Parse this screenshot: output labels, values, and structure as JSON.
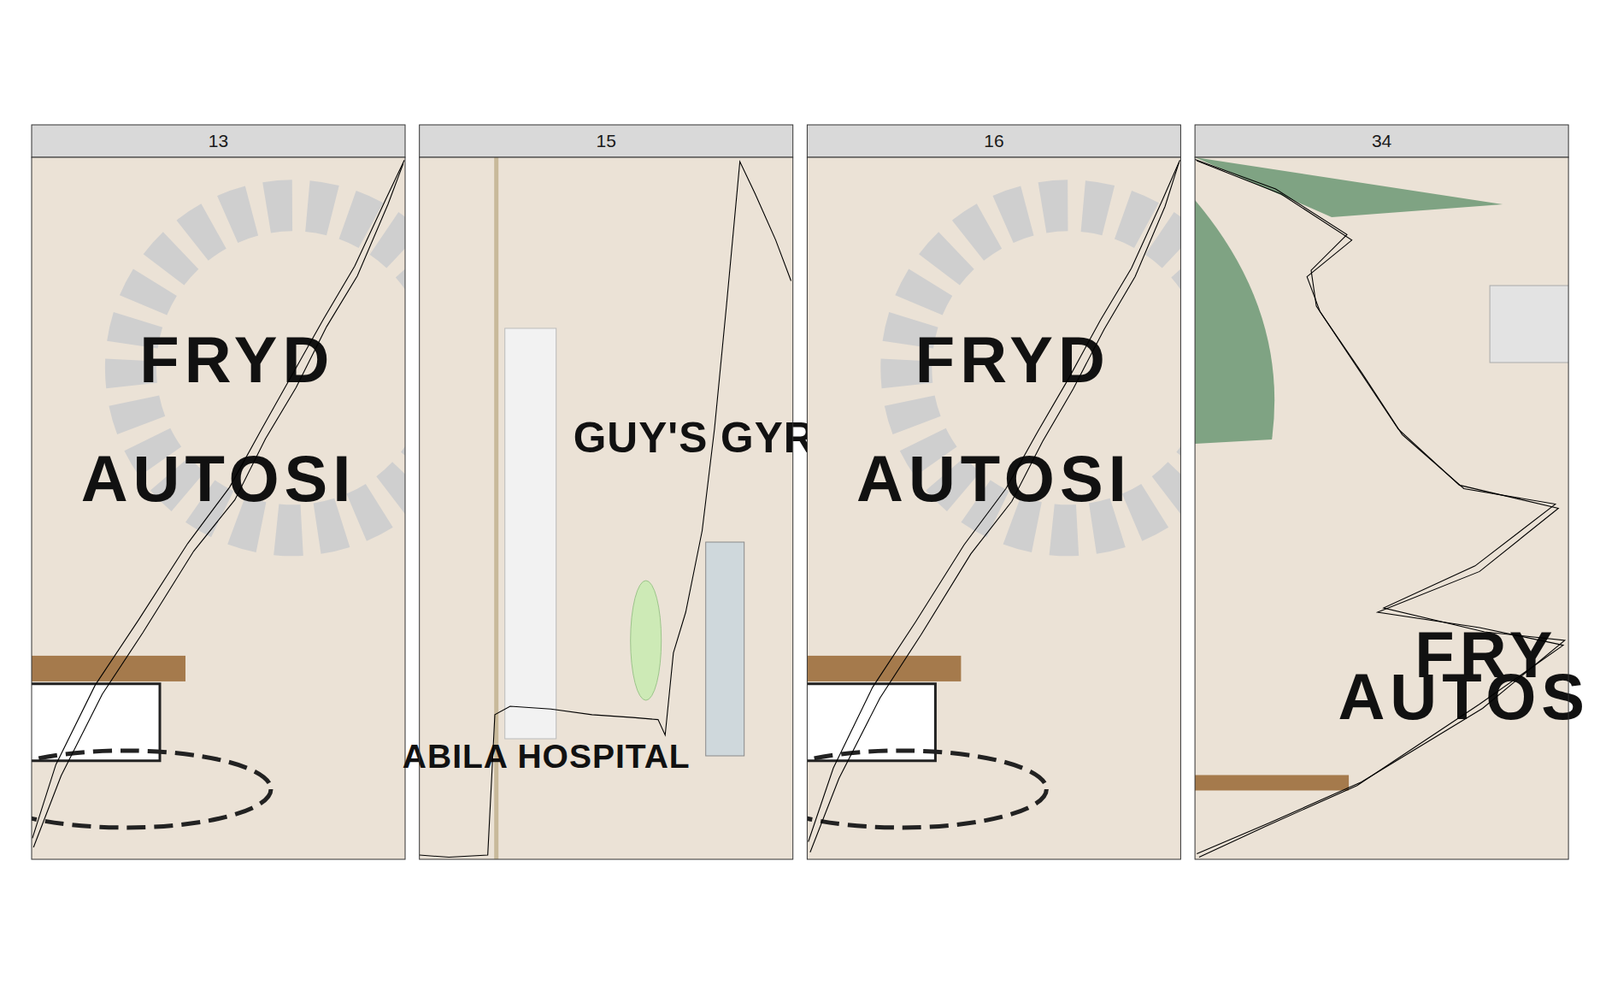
{
  "chart_data": [
    {
      "type": "line",
      "title": "13",
      "xlim": [
        0,
        100
      ],
      "ylim": [
        0,
        100
      ],
      "tick_labels": false,
      "grid": false,
      "annotations": [
        {
          "text": "FRYD",
          "x": 55,
          "y": 68
        },
        {
          "text": "AUTOSI",
          "x": 50,
          "y": 51
        }
      ],
      "series": [
        {
          "color": "#000000",
          "x": [
            0.5,
            7.9,
            18.9,
            29.8,
            43.4,
            54.4,
            62.6,
            70.8,
            79.0,
            87.2,
            95.4,
            99.5
          ],
          "values": [
            1.7,
            11.9,
            23.5,
            32.3,
            43.9,
            51.2,
            59.9,
            67.2,
            75.9,
            83.1,
            93.3,
            99.1
          ]
        },
        {
          "color": "#000000",
          "x": [
            0.2,
            6.5,
            17.0,
            28.5,
            41.8,
            53.0,
            61.5,
            69.5,
            78.2,
            86.5,
            94.8,
            99.8
          ],
          "values": [
            3.0,
            13.5,
            24.8,
            34.0,
            45.0,
            53.0,
            61.2,
            68.8,
            77.0,
            84.5,
            94.0,
            99.6
          ]
        }
      ]
    },
    {
      "type": "line",
      "title": "15",
      "xlim": [
        0,
        100
      ],
      "ylim": [
        0,
        100
      ],
      "tick_labels": false,
      "grid": false,
      "annotations": [
        {
          "text": "GUY'S GYROS",
          "x": 82,
          "y": 58
        },
        {
          "text": "ABILA HOSPITAL",
          "x": 34,
          "y": 13
        }
      ],
      "series": [
        {
          "color": "#000000",
          "x": [
            0,
            7.9,
            18.3,
            20.2,
            24.3,
            35.2,
            46.2,
            57.1,
            63.9,
            65.8,
            68.0,
            71.3,
            75.7,
            79.0,
            82.2,
            85.8,
            89.9,
            95.4,
            99.5
          ],
          "values": [
            0.6,
            0.3,
            0.6,
            20.6,
            21.8,
            21.4,
            20.6,
            20.2,
            19.9,
            17.7,
            29.4,
            35.2,
            46.8,
            61.3,
            78.8,
            99.4,
            94.8,
            88.2,
            82.4
          ]
        }
      ]
    },
    {
      "type": "line",
      "title": "16",
      "xlim": [
        0,
        100
      ],
      "ylim": [
        0,
        100
      ],
      "tick_labels": false,
      "grid": false,
      "annotations": [
        {
          "text": "FRYD",
          "x": 55,
          "y": 68
        },
        {
          "text": "AUTOSI",
          "x": 50,
          "y": 51
        }
      ],
      "series": [
        {
          "color": "#000000",
          "x": [
            0.8,
            8.5,
            19.5,
            30.5,
            43.8,
            54.8,
            63.0,
            71.2,
            79.5,
            87.8,
            95.8,
            99.5
          ],
          "values": [
            1.0,
            11.5,
            23.0,
            32.0,
            43.5,
            51.0,
            59.5,
            67.0,
            75.5,
            83.0,
            93.0,
            99.2
          ]
        },
        {
          "color": "#000000",
          "x": [
            0.3,
            7.0,
            17.5,
            29.0,
            42.0,
            53.2,
            61.8,
            70.0,
            78.5,
            86.8,
            95.0,
            99.8
          ],
          "values": [
            2.5,
            13.0,
            24.5,
            33.8,
            44.8,
            52.8,
            61.0,
            68.5,
            76.8,
            84.2,
            93.8,
            99.6
          ]
        }
      ]
    },
    {
      "type": "line",
      "title": "34",
      "xlim": [
        0,
        100
      ],
      "ylim": [
        0,
        100
      ],
      "tick_labels": false,
      "grid": false,
      "annotations": [
        {
          "text": "FRY",
          "x": 78,
          "y": 26
        },
        {
          "text": "AUTOS",
          "x": 72,
          "y": 20
        }
      ],
      "series": [
        {
          "color": "#000000",
          "x": [
            0,
            21.6,
            40.7,
            31.1,
            32.5,
            43.4,
            54.4,
            70.8,
            97.3,
            76.2,
            48.9,
            76.2,
            98.6,
            76.2,
            43.4,
            18.9,
            1.1
          ],
          "values": [
            99.7,
            95.5,
            89.0,
            83.9,
            78.8,
            70.1,
            61.3,
            53.3,
            50.0,
            41.0,
            35.2,
            33.0,
            30.5,
            22.1,
            10.5,
            4.7,
            0.3
          ]
        },
        {
          "color": "#000000",
          "x": [
            0.5,
            23.0,
            42.0,
            30.0,
            33.5,
            44.8,
            55.5,
            72.0,
            96.5,
            75.0,
            50.5,
            77.5,
            99.0,
            77.0,
            44.5,
            20.0,
            0.5
          ],
          "values": [
            99.5,
            94.8,
            88.2,
            83.0,
            78.0,
            69.2,
            60.5,
            52.8,
            50.6,
            41.8,
            35.8,
            32.4,
            31.2,
            21.5,
            11.0,
            5.2,
            0.8
          ]
        }
      ]
    }
  ]
}
